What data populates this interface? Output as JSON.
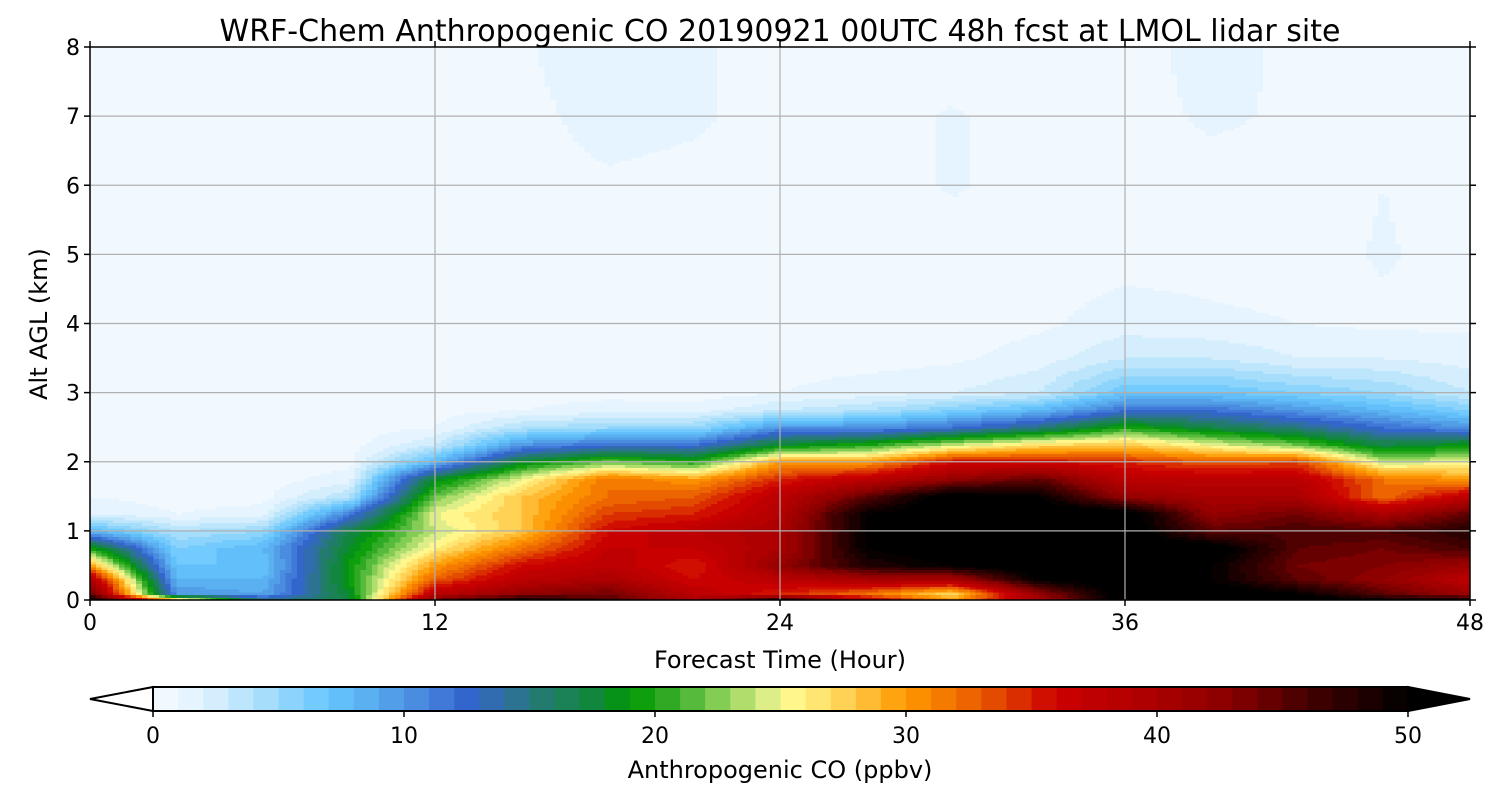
{
  "chart_data": {
    "type": "heatmap",
    "title": "WRF-Chem Anthropogenic CO 20190921 00UTC 48h fcst at LMOL lidar site",
    "xlabel": "Forecast Time (Hour)",
    "ylabel": "Alt AGL (km)",
    "xlim": [
      0,
      48
    ],
    "ylim": [
      0,
      8
    ],
    "xticks": [
      0,
      12,
      24,
      36,
      48
    ],
    "yticks": [
      0,
      1,
      2,
      3,
      4,
      5,
      6,
      7,
      8
    ],
    "grid": true,
    "colorbar": {
      "label": "Anthropogenic CO  (ppbv)",
      "range": [
        0,
        50
      ],
      "step": 1,
      "ticks": [
        0,
        10,
        20,
        30,
        40,
        50
      ],
      "extend": "both",
      "anchors": [
        [
          0,
          "#f7fbff"
        ],
        [
          2,
          "#dff2fd"
        ],
        [
          4,
          "#b2e2fb"
        ],
        [
          6,
          "#7fcffb"
        ],
        [
          7,
          "#66c6ff"
        ],
        [
          9,
          "#56a8ec"
        ],
        [
          11,
          "#4682dc"
        ],
        [
          12.5,
          "#3366cc"
        ],
        [
          14,
          "#2f6fa0"
        ],
        [
          16,
          "#1f7f60"
        ],
        [
          18,
          "#0b8a30"
        ],
        [
          19,
          "#009900"
        ],
        [
          21,
          "#40b030"
        ],
        [
          23,
          "#99d660"
        ],
        [
          24.5,
          "#ddee88"
        ],
        [
          25,
          "#ffff99"
        ],
        [
          27,
          "#ffdd66"
        ],
        [
          30,
          "#ff9900"
        ],
        [
          33,
          "#e85a00"
        ],
        [
          36,
          "#cc0000"
        ],
        [
          40,
          "#aa0000"
        ],
        [
          43,
          "#880000"
        ],
        [
          46,
          "#440000"
        ],
        [
          50,
          "#000000"
        ]
      ]
    },
    "times": [
      0,
      3,
      6,
      9,
      12,
      15,
      18,
      21,
      24,
      27,
      30,
      33,
      36,
      39,
      42,
      45,
      48
    ],
    "heights_km": [
      0,
      0.1,
      0.3,
      0.5,
      0.75,
      1,
      1.25,
      1.5,
      1.75,
      2,
      2.25,
      2.5,
      2.75,
      3,
      3.5,
      4,
      5,
      6,
      7,
      8
    ],
    "values_ppbv_by_time": [
      [
        50,
        45,
        40,
        30,
        20,
        8,
        2,
        1,
        0.8,
        0.6,
        0.5,
        0.5,
        0.5,
        0.5,
        0.5,
        0.5,
        0.5,
        0.5,
        0.5,
        0.5
      ],
      [
        30,
        10,
        8,
        7,
        6,
        4,
        1,
        0.6,
        0.5,
        0.5,
        0.5,
        0.5,
        0.5,
        0.5,
        0.5,
        0.5,
        0.5,
        0.5,
        0.5,
        0.5
      ],
      [
        15,
        9,
        8,
        7,
        8,
        5,
        1.5,
        0.6,
        0.5,
        0.5,
        0.5,
        0.5,
        0.5,
        0.5,
        0.5,
        0.5,
        0.5,
        0.5,
        0.5,
        0.5
      ],
      [
        17,
        18,
        19,
        19,
        18,
        17,
        11,
        4,
        1.5,
        0.6,
        0.5,
        0.5,
        0.5,
        0.5,
        0.5,
        0.5,
        0.5,
        0.5,
        0.5,
        0.5
      ],
      [
        45,
        38,
        33,
        30,
        26,
        24,
        25,
        22,
        18,
        8,
        3,
        1,
        0.6,
        0.5,
        0.5,
        0.5,
        0.5,
        0.5,
        0.5,
        0.5
      ],
      [
        50,
        42,
        38,
        36,
        32,
        28,
        28,
        28,
        25,
        18,
        10,
        4,
        1,
        0.6,
        0.5,
        0.5,
        0.5,
        0.5,
        0.6,
        0.8
      ],
      [
        46,
        44,
        40,
        38,
        37,
        36,
        34,
        32,
        32,
        22,
        12,
        5,
        1.5,
        0.7,
        0.5,
        0.5,
        0.5,
        0.8,
        1.5,
        2
      ],
      [
        40,
        38,
        36,
        35,
        37,
        38,
        35,
        33,
        30,
        20,
        12,
        5,
        1.5,
        0.5,
        0.5,
        0.5,
        0.5,
        0.6,
        1.2,
        1.2
      ],
      [
        50,
        35,
        38,
        42,
        40,
        40,
        39,
        38,
        35,
        30,
        18,
        10,
        3,
        1,
        0.6,
        0.5,
        0.5,
        0.5,
        0.5,
        0.5
      ],
      [
        38,
        32,
        40,
        48,
        50,
        50,
        50,
        45,
        38,
        30,
        20,
        10,
        4,
        1.5,
        0.6,
        0.5,
        0.5,
        0.5,
        0.6,
        0.5
      ],
      [
        30,
        27,
        40,
        50,
        52,
        52,
        52,
        52,
        42,
        36,
        24,
        12,
        6,
        2,
        0.8,
        0.5,
        0.5,
        1.1,
        1.1,
        0.5
      ],
      [
        40,
        42,
        50,
        52,
        52,
        52,
        52,
        50,
        45,
        36,
        27,
        15,
        8,
        3,
        1.5,
        0.8,
        0.5,
        0.6,
        0.5,
        0.5
      ],
      [
        52,
        52,
        52,
        52,
        52,
        52,
        52,
        42,
        38,
        35,
        28,
        20,
        12,
        7,
        3,
        1.5,
        0.6,
        0.5,
        0.5,
        0.5
      ],
      [
        52,
        52,
        50,
        50,
        52,
        45,
        42,
        40,
        38,
        33,
        25,
        17,
        12,
        7,
        3,
        1.2,
        0.6,
        0.5,
        1.2,
        1.5
      ],
      [
        52,
        50,
        45,
        44,
        45,
        46,
        44,
        40,
        38,
        34,
        22,
        15,
        10,
        6,
        2,
        1,
        0.6,
        0.6,
        0.8,
        0.7
      ],
      [
        50,
        45,
        42,
        43,
        44,
        46,
        40,
        32,
        32,
        24,
        17,
        12,
        8,
        5,
        2,
        0.8,
        1.1,
        1.0,
        0.6,
        0.5
      ],
      [
        50,
        41,
        38,
        41,
        46,
        48,
        45,
        38,
        30,
        25,
        19,
        10,
        6,
        3,
        1.5,
        0.8,
        0.6,
        0.5,
        0.5,
        0.5
      ]
    ]
  }
}
